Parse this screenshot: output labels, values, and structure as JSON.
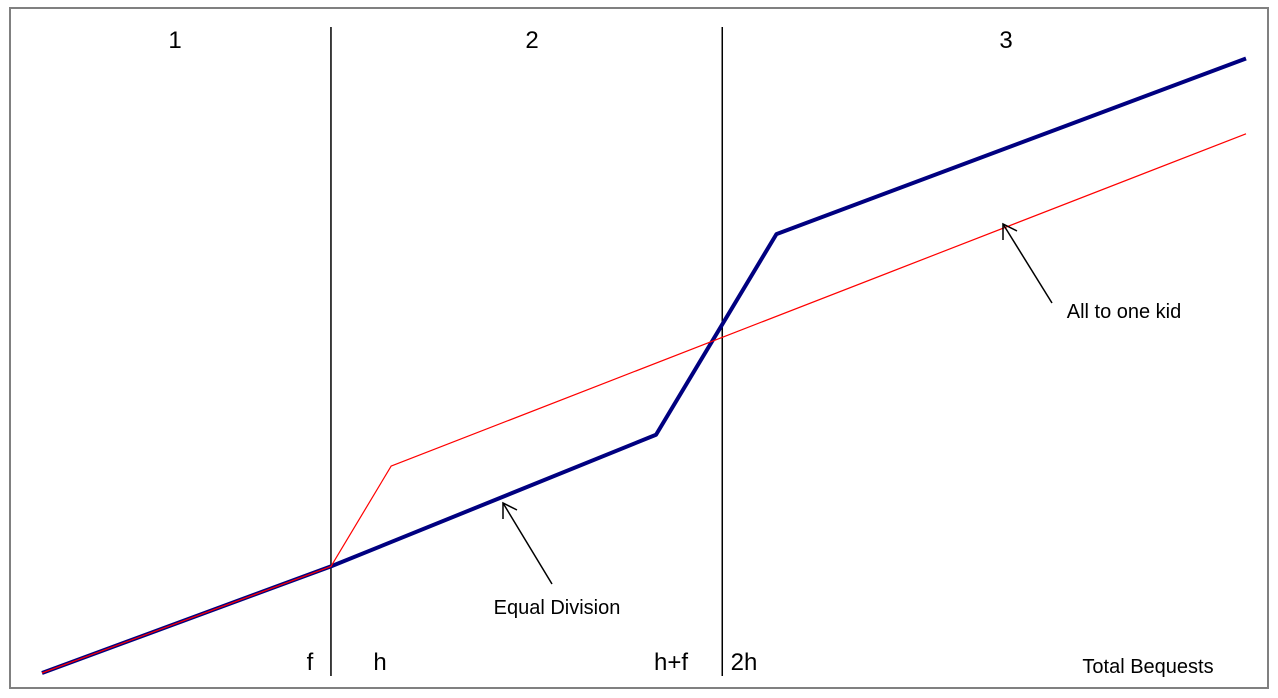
{
  "chart_data": {
    "type": "line",
    "title": "",
    "xlabel": "Total Bequests",
    "ylabel": "",
    "xlim": [
      0,
      100
    ],
    "ylim": [
      0,
      100
    ],
    "grid": false,
    "legend": "none",
    "regions": [
      "1",
      "2",
      "3"
    ],
    "x_ticks": [
      {
        "label": "f",
        "x": 24
      },
      {
        "label": "h",
        "x": 29
      },
      {
        "label": "h+f",
        "x": 51.5
      },
      {
        "label": "2h",
        "x": 56.5
      }
    ],
    "vertical_lines": [
      24,
      56.5
    ],
    "series": [
      {
        "name": "Equal Division",
        "color": "#000080",
        "points": [
          [
            0,
            0
          ],
          [
            24,
            17
          ],
          [
            51,
            38
          ],
          [
            61,
            70
          ],
          [
            100,
            98
          ]
        ]
      },
      {
        "name": "All to one kid",
        "color": "#ff0000",
        "points": [
          [
            0,
            0
          ],
          [
            24,
            17
          ],
          [
            29,
            33
          ],
          [
            100,
            86
          ]
        ]
      }
    ],
    "annotations": [
      {
        "text": "Equal Division",
        "series": "Equal Division"
      },
      {
        "text": "All to one kid",
        "series": "All to one kid"
      }
    ]
  }
}
